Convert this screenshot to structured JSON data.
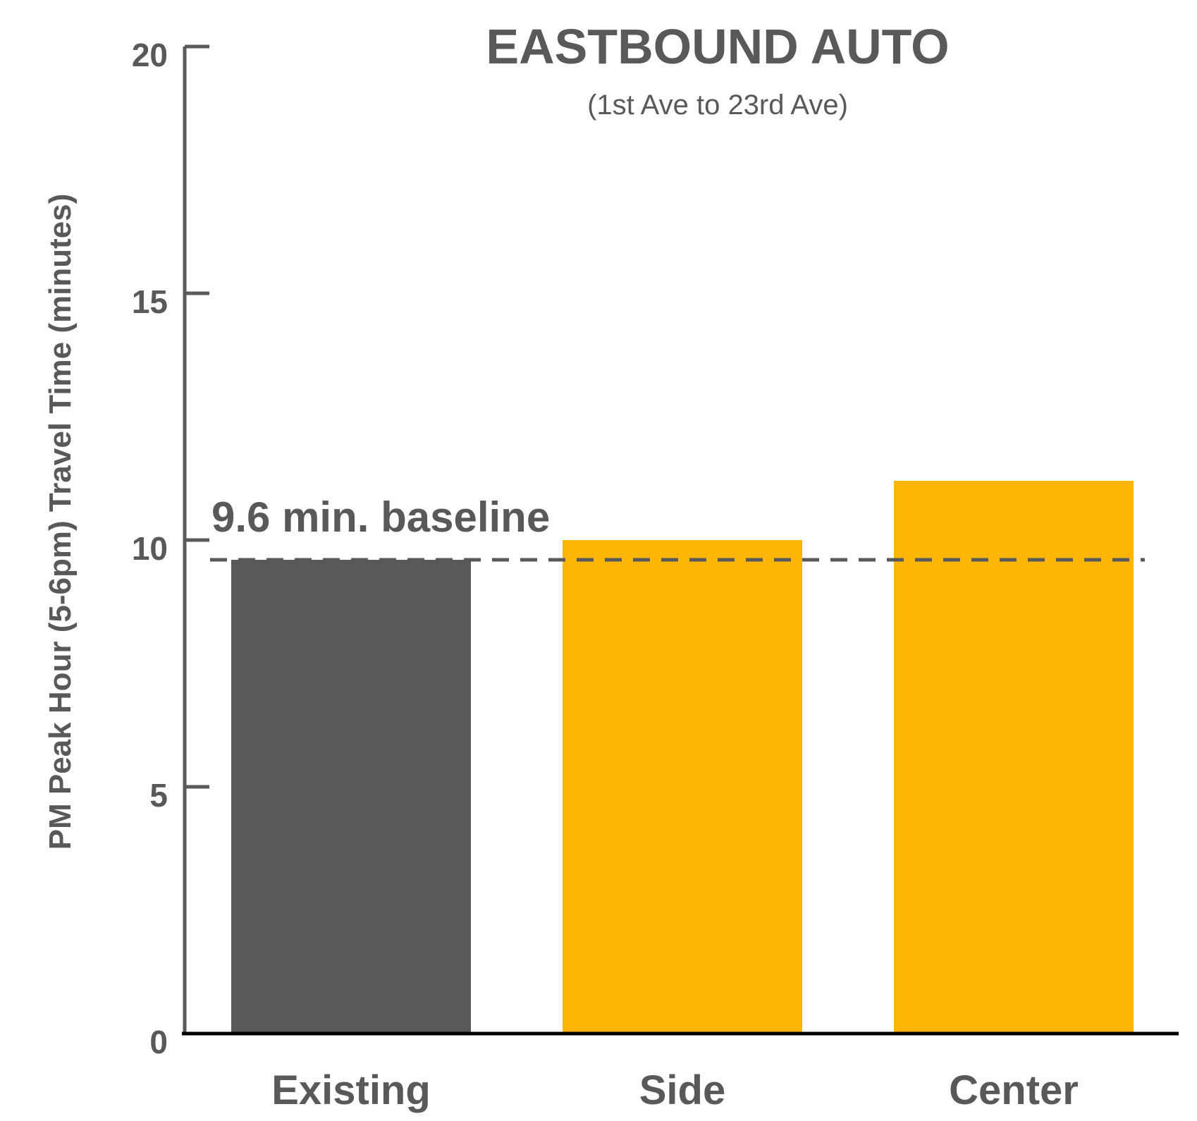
{
  "chart_data": {
    "type": "bar",
    "title": "EASTBOUND AUTO",
    "subtitle": "(1st Ave to 23rd Ave)",
    "xlabel": "",
    "ylabel": "PM Peak Hour (5-6pm) Travel Time (minutes)",
    "categories": [
      "Existing",
      "Side",
      "Center"
    ],
    "values": [
      9.6,
      10.0,
      11.2
    ],
    "ylim": [
      0,
      20
    ],
    "yticks": [
      "0",
      "5",
      "10",
      "15",
      "20"
    ],
    "grid": false,
    "legend": "none",
    "baseline": {
      "value": 9.6,
      "label": "9.6 min. baseline",
      "style": "dashed"
    },
    "colors": {
      "existing": "#58595b",
      "scenario": "#fdb506",
      "axis": "#58595b",
      "text": "#58595b",
      "baseline": "#58595b",
      "zero_line": "#000000"
    }
  }
}
